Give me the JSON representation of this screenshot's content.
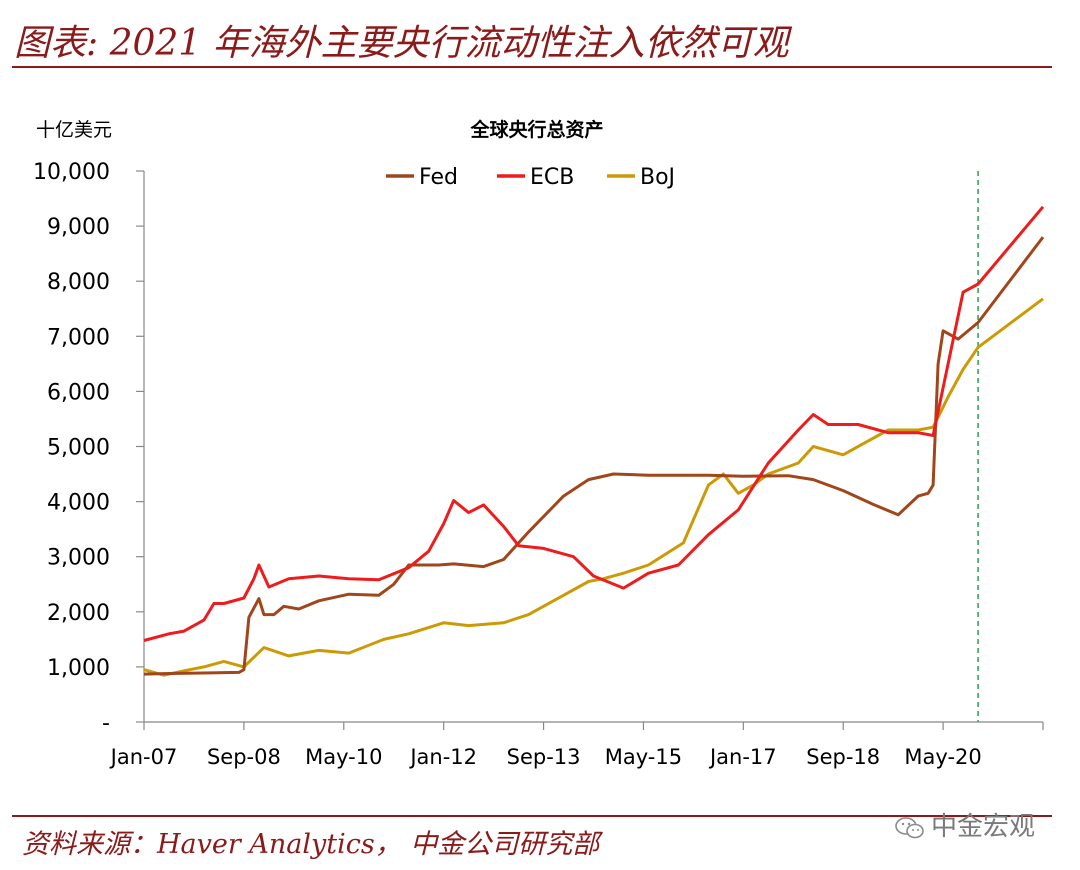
{
  "header": {
    "title": "图表: 2021 年海外主要央行流动性注入依然可观"
  },
  "footer": {
    "source": "资料来源：Haver Analytics， 中金公司研究部"
  },
  "watermark": {
    "text": "中金宏观"
  },
  "colors": {
    "accent": "#8b1a1a",
    "fed": "#a0461a",
    "ecb": "#ee1c1c",
    "boj": "#cc9a06",
    "marker": "#2e9e4f"
  },
  "chart_data": {
    "type": "line",
    "title": "全球央行总资产",
    "ylabel": "十亿美元",
    "xlabel": "",
    "ylim": [
      0,
      10000
    ],
    "yticks": [
      0,
      1000,
      2000,
      3000,
      4000,
      5000,
      6000,
      7000,
      8000,
      9000,
      10000
    ],
    "ytick_labels": [
      "-",
      "1,000",
      "2,000",
      "3,000",
      "4,000",
      "5,000",
      "6,000",
      "7,000",
      "8,000",
      "9,000",
      "10,000"
    ],
    "xlim": [
      "2007-01",
      "2022-01"
    ],
    "xticks": [
      "2007-01",
      "2008-09",
      "2010-05",
      "2012-01",
      "2013-09",
      "2015-05",
      "2017-01",
      "2018-09",
      "2020-05"
    ],
    "xtick_labels": [
      "Jan-07",
      "Sep-08",
      "May-10",
      "Jan-12",
      "Sep-13",
      "May-15",
      "Jan-17",
      "Sep-18",
      "May-20"
    ],
    "legend_position": "top",
    "vertical_marker": "2020-12",
    "series": [
      {
        "name": "Fed",
        "color": "#a0461a",
        "points": [
          [
            "2007-01",
            870
          ],
          [
            "2007-06",
            880
          ],
          [
            "2008-01",
            890
          ],
          [
            "2008-08",
            900
          ],
          [
            "2008-09",
            950
          ],
          [
            "2008-10",
            1900
          ],
          [
            "2008-12",
            2240
          ],
          [
            "2009-01",
            1950
          ],
          [
            "2009-03",
            1950
          ],
          [
            "2009-05",
            2100
          ],
          [
            "2009-08",
            2050
          ],
          [
            "2009-12",
            2200
          ],
          [
            "2010-06",
            2320
          ],
          [
            "2010-12",
            2300
          ],
          [
            "2011-03",
            2500
          ],
          [
            "2011-06",
            2850
          ],
          [
            "2011-12",
            2850
          ],
          [
            "2012-03",
            2870
          ],
          [
            "2012-09",
            2820
          ],
          [
            "2013-01",
            2950
          ],
          [
            "2013-06",
            3450
          ],
          [
            "2014-01",
            4100
          ],
          [
            "2014-06",
            4400
          ],
          [
            "2014-11",
            4500
          ],
          [
            "2015-06",
            4480
          ],
          [
            "2016-06",
            4480
          ],
          [
            "2017-01",
            4460
          ],
          [
            "2017-10",
            4470
          ],
          [
            "2018-03",
            4400
          ],
          [
            "2018-09",
            4200
          ],
          [
            "2019-03",
            3950
          ],
          [
            "2019-08",
            3760
          ],
          [
            "2019-12",
            4100
          ],
          [
            "2020-02",
            4150
          ],
          [
            "2020-03",
            4300
          ],
          [
            "2020-04",
            6500
          ],
          [
            "2020-05",
            7100
          ],
          [
            "2020-08",
            6950
          ],
          [
            "2020-12",
            7250
          ],
          [
            "2022-01",
            8800
          ]
        ]
      },
      {
        "name": "ECB",
        "color": "#ee1c1c",
        "points": [
          [
            "2007-01",
            1480
          ],
          [
            "2007-06",
            1600
          ],
          [
            "2007-09",
            1650
          ],
          [
            "2008-01",
            1850
          ],
          [
            "2008-03",
            2150
          ],
          [
            "2008-05",
            2150
          ],
          [
            "2008-09",
            2250
          ],
          [
            "2008-11",
            2600
          ],
          [
            "2008-12",
            2850
          ],
          [
            "2009-02",
            2450
          ],
          [
            "2009-06",
            2600
          ],
          [
            "2009-12",
            2650
          ],
          [
            "2010-06",
            2600
          ],
          [
            "2010-12",
            2580
          ],
          [
            "2011-06",
            2800
          ],
          [
            "2011-10",
            3100
          ],
          [
            "2012-01",
            3600
          ],
          [
            "2012-03",
            4020
          ],
          [
            "2012-06",
            3800
          ],
          [
            "2012-09",
            3940
          ],
          [
            "2013-01",
            3550
          ],
          [
            "2013-04",
            3200
          ],
          [
            "2013-09",
            3150
          ],
          [
            "2014-03",
            3000
          ],
          [
            "2014-07",
            2650
          ],
          [
            "2015-01",
            2430
          ],
          [
            "2015-06",
            2700
          ],
          [
            "2015-12",
            2850
          ],
          [
            "2016-06",
            3400
          ],
          [
            "2016-12",
            3850
          ],
          [
            "2017-06",
            4700
          ],
          [
            "2017-12",
            5300
          ],
          [
            "2018-03",
            5580
          ],
          [
            "2018-06",
            5400
          ],
          [
            "2018-12",
            5400
          ],
          [
            "2019-06",
            5250
          ],
          [
            "2019-12",
            5250
          ],
          [
            "2020-03",
            5200
          ],
          [
            "2020-06",
            6500
          ],
          [
            "2020-09",
            7800
          ],
          [
            "2020-12",
            7950
          ],
          [
            "2022-01",
            9350
          ]
        ]
      },
      {
        "name": "BoJ",
        "color": "#cc9a06",
        "points": [
          [
            "2007-01",
            950
          ],
          [
            "2007-05",
            850
          ],
          [
            "2007-09",
            930
          ],
          [
            "2008-01",
            1000
          ],
          [
            "2008-05",
            1100
          ],
          [
            "2008-09",
            1000
          ],
          [
            "2009-01",
            1350
          ],
          [
            "2009-06",
            1200
          ],
          [
            "2009-12",
            1300
          ],
          [
            "2010-06",
            1250
          ],
          [
            "2011-01",
            1500
          ],
          [
            "2011-06",
            1600
          ],
          [
            "2012-01",
            1800
          ],
          [
            "2012-06",
            1750
          ],
          [
            "2013-01",
            1800
          ],
          [
            "2013-06",
            1950
          ],
          [
            "2014-01",
            2300
          ],
          [
            "2014-06",
            2550
          ],
          [
            "2014-09",
            2600
          ],
          [
            "2015-01",
            2700
          ],
          [
            "2015-06",
            2850
          ],
          [
            "2016-01",
            3250
          ],
          [
            "2016-06",
            4300
          ],
          [
            "2016-09",
            4500
          ],
          [
            "2016-12",
            4150
          ],
          [
            "2017-03",
            4300
          ],
          [
            "2017-06",
            4500
          ],
          [
            "2017-12",
            4700
          ],
          [
            "2018-03",
            5000
          ],
          [
            "2018-09",
            4850
          ],
          [
            "2019-01",
            5050
          ],
          [
            "2019-06",
            5300
          ],
          [
            "2019-12",
            5300
          ],
          [
            "2020-03",
            5350
          ],
          [
            "2020-06",
            5900
          ],
          [
            "2020-09",
            6400
          ],
          [
            "2020-12",
            6800
          ],
          [
            "2022-01",
            7680
          ]
        ]
      }
    ]
  }
}
